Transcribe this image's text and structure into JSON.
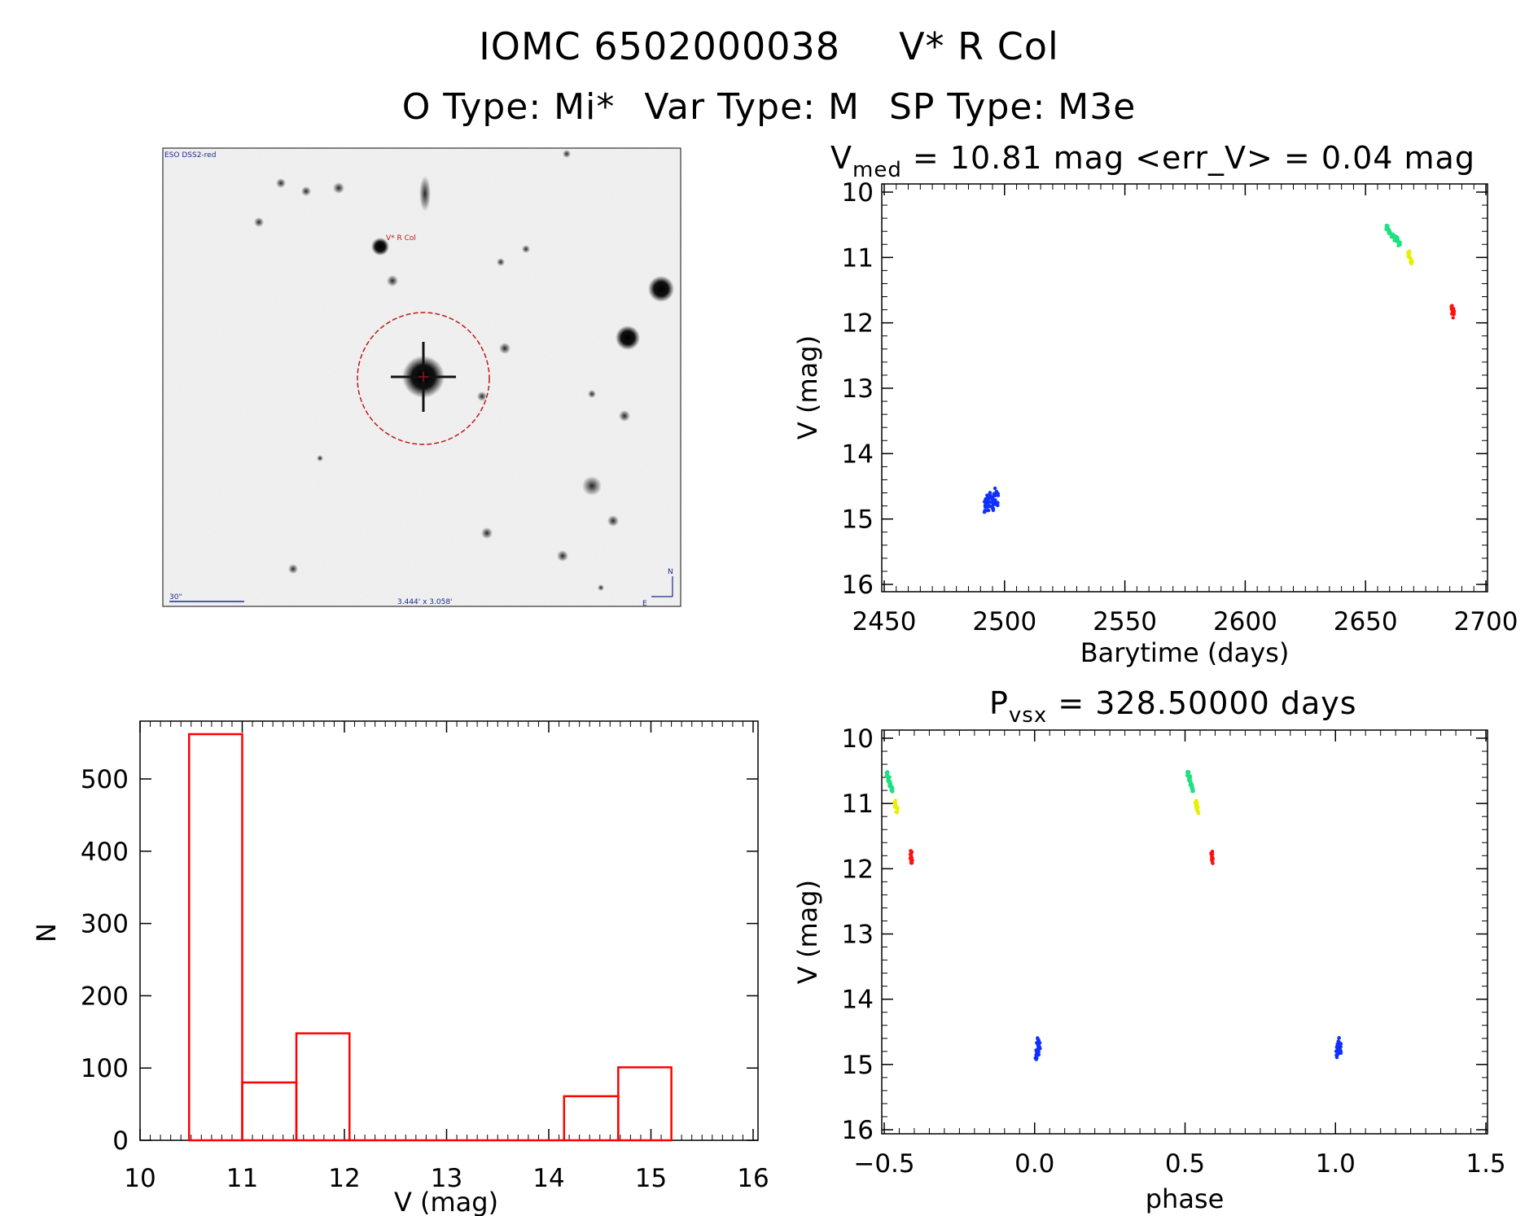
{
  "header": {
    "line1_id": "IOMC 6502000038",
    "line1_name": "V* R Col",
    "line2_otype": "O Type: Mi*",
    "line2_vartype": "Var Type: M",
    "line2_sptype": "SP Type: M3e"
  },
  "image_panel": {
    "survey_label": "ESO DSS2-red",
    "target_label": "V* R Col",
    "scale_label": "30\"",
    "fov_label": "3.444' x 3.058'",
    "north_label": "N",
    "east_label": "E"
  },
  "colors": {
    "blue": "#1030ff",
    "green": "#20e080",
    "yellow": "#e8f000",
    "red": "#ff1010",
    "hist": "#ff0000",
    "circle": "#c01818"
  },
  "chart_data": [
    {
      "type": "scatter",
      "panel": "lightcurve",
      "title_main": "V",
      "title_sub": "med",
      "title_rest": " = 10.81 mag <err_V> = 0.04 mag",
      "xlabel": "Barytime (days)",
      "ylabel": "V (mag)",
      "xlim": [
        2450,
        2700
      ],
      "ylim": [
        16,
        10
      ],
      "x_ticks": [
        "2450",
        "2500",
        "2550",
        "2600",
        "2650",
        "2700"
      ],
      "y_ticks": [
        "10",
        "11",
        "12",
        "13",
        "14",
        "15",
        "16"
      ],
      "series": [
        {
          "name": "blue",
          "x": [
            2492,
            2493,
            2494,
            2495,
            2496,
            2497
          ],
          "y": [
            14.8,
            14.75,
            14.7,
            14.75,
            14.65,
            14.7
          ],
          "y_spread": 0.25
        },
        {
          "name": "green",
          "x": [
            2659,
            2660,
            2661,
            2662,
            2663,
            2664
          ],
          "y": [
            10.55,
            10.6,
            10.65,
            10.7,
            10.72,
            10.8
          ],
          "y_spread": 0.08
        },
        {
          "name": "yellow",
          "x": [
            2668,
            2669
          ],
          "y": [
            10.95,
            11.05
          ],
          "y_spread": 0.1
        },
        {
          "name": "red",
          "x": [
            2686,
            2686.5
          ],
          "y": [
            11.8,
            11.85
          ],
          "y_spread": 0.15
        }
      ]
    },
    {
      "type": "scatter",
      "panel": "phased",
      "title_main": "P",
      "title_sub": "vsx",
      "title_rest": " = 328.50000 days",
      "xlabel": "phase",
      "ylabel": "V (mag)",
      "xlim": [
        -0.5,
        1.5
      ],
      "ylim": [
        16,
        10
      ],
      "x_ticks": [
        "−0.5",
        "0.0",
        "0.5",
        "1.0",
        "1.5"
      ],
      "y_ticks": [
        "10",
        "11",
        "12",
        "13",
        "14",
        "15",
        "16"
      ],
      "series": [
        {
          "name": "green",
          "x": [
            -0.49,
            -0.485,
            -0.48,
            -0.475
          ],
          "y": [
            10.55,
            10.62,
            10.7,
            10.78
          ],
          "y_spread": 0.08
        },
        {
          "name": "yellow",
          "x": [
            -0.463,
            -0.458
          ],
          "y": [
            11.0,
            11.1
          ],
          "y_spread": 0.1
        },
        {
          "name": "red",
          "x": [
            -0.41,
            -0.408
          ],
          "y": [
            11.8,
            11.85
          ],
          "y_spread": 0.15
        },
        {
          "name": "blue",
          "x": [
            0.005,
            0.01,
            0.015
          ],
          "y": [
            14.8,
            14.7,
            14.75
          ],
          "y_spread": 0.25
        },
        {
          "name": "green",
          "x": [
            0.51,
            0.515,
            0.52,
            0.525
          ],
          "y": [
            10.55,
            10.62,
            10.7,
            10.78
          ],
          "y_spread": 0.08
        },
        {
          "name": "yellow",
          "x": [
            0.537,
            0.542
          ],
          "y": [
            11.0,
            11.1
          ],
          "y_spread": 0.1
        },
        {
          "name": "red",
          "x": [
            0.59,
            0.592
          ],
          "y": [
            11.8,
            11.85
          ],
          "y_spread": 0.15
        },
        {
          "name": "blue",
          "x": [
            1.005,
            1.01,
            1.015
          ],
          "y": [
            14.8,
            14.7,
            14.75
          ],
          "y_spread": 0.25
        }
      ]
    },
    {
      "type": "bar",
      "panel": "histogram",
      "xlabel": "V (mag)",
      "ylabel": "N",
      "xlim": [
        10,
        16
      ],
      "ylim": [
        0,
        580
      ],
      "x_ticks": [
        "10",
        "11",
        "12",
        "13",
        "14",
        "15",
        "16"
      ],
      "y_ticks": [
        "0",
        "100",
        "200",
        "300",
        "400",
        "500"
      ],
      "bins": [
        {
          "x0": 10.48,
          "x1": 11.0,
          "value": 562
        },
        {
          "x0": 11.0,
          "x1": 11.53,
          "value": 80
        },
        {
          "x0": 11.53,
          "x1": 12.05,
          "value": 148
        },
        {
          "x0": 12.05,
          "x1": 12.58,
          "value": 0
        },
        {
          "x0": 12.58,
          "x1": 13.1,
          "value": 0
        },
        {
          "x0": 13.1,
          "x1": 13.63,
          "value": 0
        },
        {
          "x0": 13.63,
          "x1": 14.15,
          "value": 0
        },
        {
          "x0": 14.15,
          "x1": 14.68,
          "value": 61
        },
        {
          "x0": 14.68,
          "x1": 15.2,
          "value": 101
        }
      ]
    }
  ]
}
